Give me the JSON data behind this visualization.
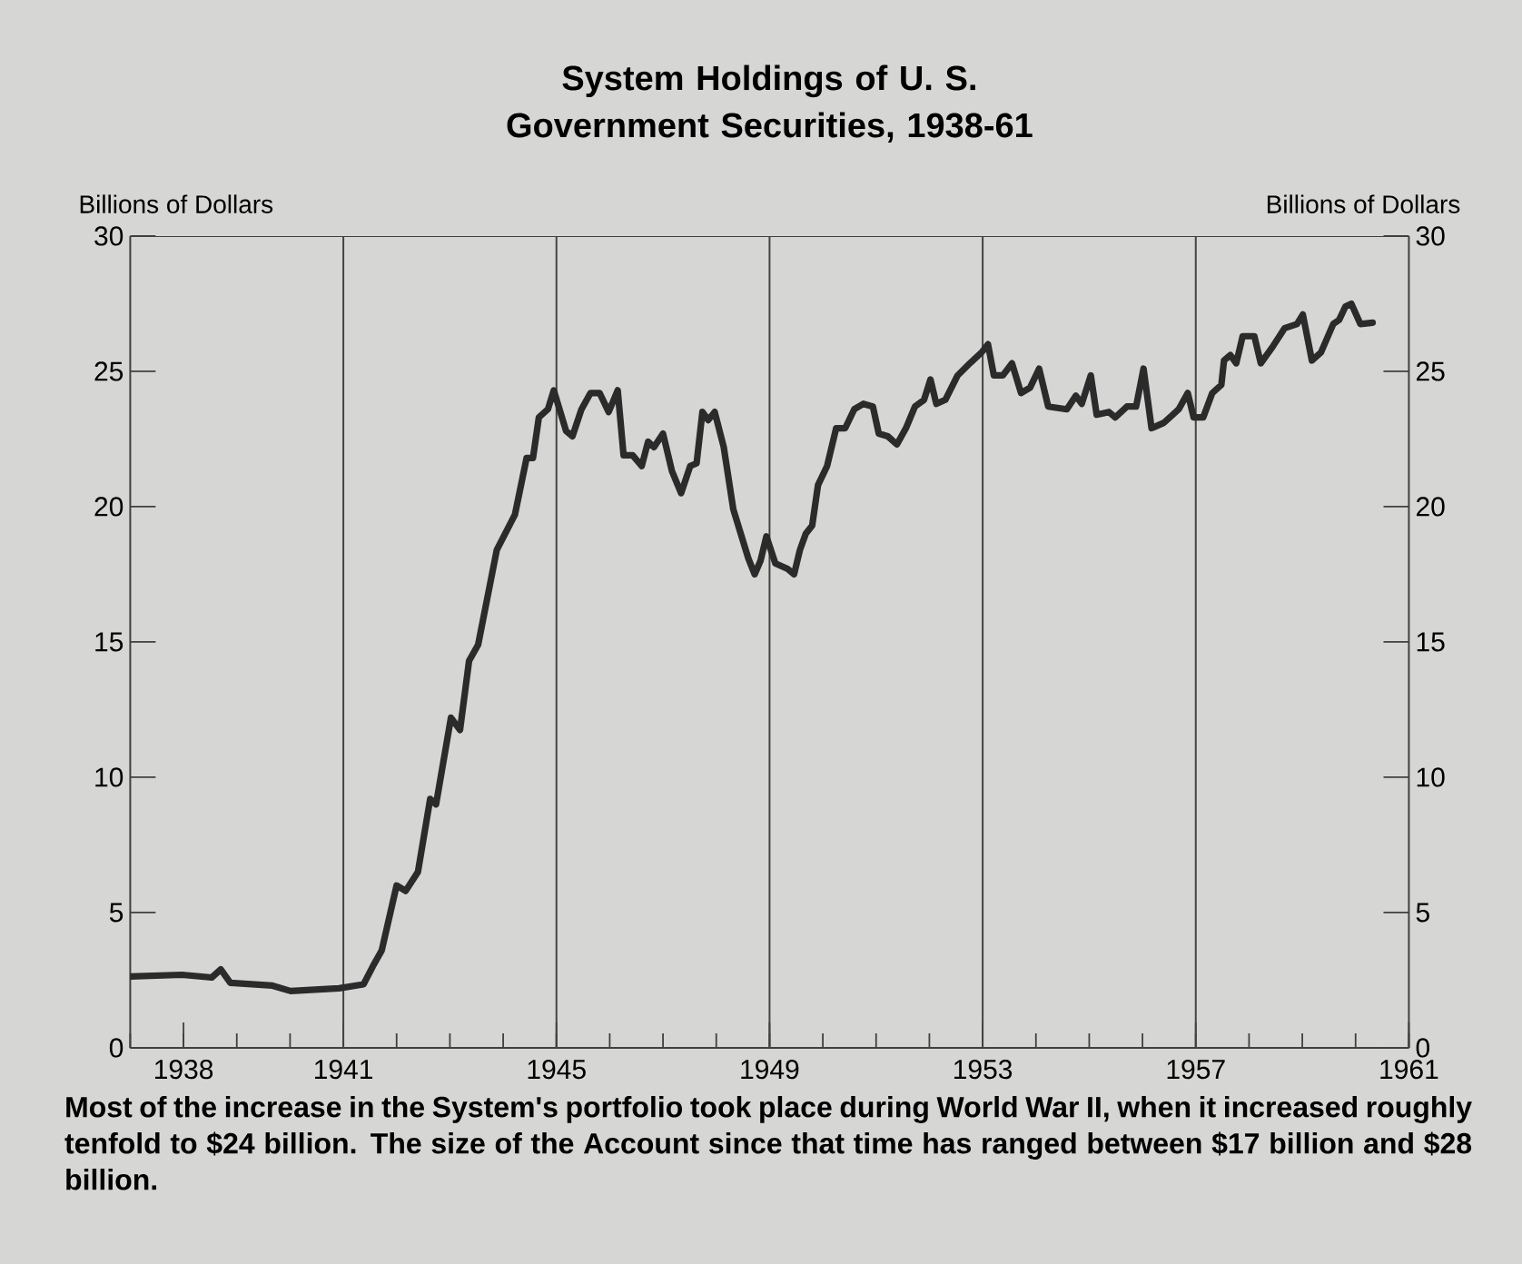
{
  "chart_data": {
    "type": "line",
    "title": "System Holdings of U. S. Government Securities, 1938-61",
    "ylabel": "Billions of Dollars",
    "y2label": "Billions of Dollars",
    "x": [
      1937.0,
      1937.97,
      1938.53,
      1938.7,
      1938.88,
      1939.67,
      1940.01,
      1940.92,
      1941.38,
      1941.55,
      1941.72,
      1942.0,
      1942.17,
      1942.4,
      1942.63,
      1942.74,
      1943.02,
      1943.19,
      1943.36,
      1943.53,
      1943.88,
      1944.22,
      1944.44,
      1944.56,
      1944.67,
      1944.84,
      1944.95,
      1945.18,
      1945.3,
      1945.47,
      1945.64,
      1945.81,
      1945.98,
      1946.15,
      1946.26,
      1946.43,
      1946.6,
      1946.72,
      1946.83,
      1947.0,
      1947.17,
      1947.34,
      1947.51,
      1947.63,
      1947.74,
      1947.85,
      1947.97,
      1948.14,
      1948.32,
      1948.6,
      1948.72,
      1948.83,
      1948.94,
      1949.11,
      1949.34,
      1949.46,
      1949.57,
      1949.68,
      1949.8,
      1949.91,
      1950.08,
      1950.25,
      1950.42,
      1950.59,
      1950.76,
      1950.94,
      1951.05,
      1951.22,
      1951.39,
      1951.56,
      1951.73,
      1951.9,
      1952.02,
      1952.13,
      1952.3,
      1952.53,
      1952.76,
      1952.98,
      1953.1,
      1953.21,
      1953.38,
      1953.55,
      1953.72,
      1953.89,
      1954.06,
      1954.23,
      1954.58,
      1954.75,
      1954.86,
      1955.03,
      1955.14,
      1955.37,
      1955.49,
      1955.71,
      1955.88,
      1956.02,
      1956.17,
      1956.4,
      1956.57,
      1956.68,
      1956.85,
      1956.96,
      1957.14,
      1957.31,
      1957.48,
      1957.53,
      1957.65,
      1957.76,
      1957.88,
      1958.1,
      1958.22,
      1958.44,
      1958.67,
      1958.9,
      1959.01,
      1959.18,
      1959.35,
      1959.58,
      1959.69,
      1959.81,
      1959.92,
      1960.09,
      1960.32
    ],
    "values": [
      2.64,
      2.7,
      2.6,
      2.9,
      2.4,
      2.3,
      2.1,
      2.2,
      2.35,
      3.0,
      3.6,
      6.0,
      5.8,
      6.5,
      9.2,
      9.0,
      12.2,
      11.75,
      14.3,
      14.9,
      18.4,
      19.7,
      21.8,
      21.8,
      23.3,
      23.6,
      24.3,
      22.8,
      22.6,
      23.6,
      24.2,
      24.2,
      23.5,
      24.3,
      21.9,
      21.9,
      21.5,
      22.4,
      22.2,
      22.7,
      21.3,
      20.5,
      21.5,
      21.6,
      23.5,
      23.2,
      23.5,
      22.2,
      19.9,
      18.1,
      17.5,
      18.0,
      18.9,
      17.9,
      17.7,
      17.5,
      18.4,
      19.0,
      19.3,
      20.8,
      21.5,
      22.9,
      22.9,
      23.6,
      23.8,
      23.7,
      22.7,
      22.6,
      22.3,
      22.9,
      23.7,
      23.95,
      24.7,
      23.8,
      23.95,
      24.85,
      25.3,
      25.7,
      26.0,
      24.85,
      24.85,
      25.3,
      24.2,
      24.4,
      25.1,
      23.7,
      23.6,
      24.1,
      23.8,
      24.85,
      23.4,
      23.5,
      23.3,
      23.7,
      23.7,
      25.1,
      22.9,
      23.1,
      23.4,
      23.6,
      24.2,
      23.3,
      23.3,
      24.2,
      24.5,
      25.4,
      25.6,
      25.3,
      26.3,
      26.3,
      25.3,
      25.9,
      26.6,
      26.75,
      27.1,
      25.4,
      25.7,
      26.75,
      26.9,
      27.4,
      27.5,
      26.75,
      26.8
    ],
    "color": "#2b2b2b",
    "marker": "none",
    "line_style": "solid",
    "grid": false,
    "xlim": [
      1937,
      1961
    ],
    "xticks": [
      1938,
      1941,
      1945,
      1949,
      1953,
      1957,
      1961
    ],
    "ylim": [
      0,
      30
    ],
    "yticks": [
      0,
      5,
      10,
      15,
      20,
      25,
      30
    ],
    "y2lim": [
      0,
      30
    ],
    "y2ticks": [
      0,
      5,
      10,
      15,
      20,
      25,
      30
    ],
    "ref_lines": [
      {
        "axis": "x",
        "value": 1941
      },
      {
        "axis": "x",
        "value": 1945
      },
      {
        "axis": "x",
        "value": 1949
      },
      {
        "axis": "x",
        "value": 1953
      },
      {
        "axis": "x",
        "value": 1957
      }
    ],
    "annotations": [
      "Most of the increase in the System's portfolio took place during World War II, when it increased roughly tenfold to $24 billion. The size of the Account since that time has ranged between $17 billion and $28 billion."
    ]
  }
}
